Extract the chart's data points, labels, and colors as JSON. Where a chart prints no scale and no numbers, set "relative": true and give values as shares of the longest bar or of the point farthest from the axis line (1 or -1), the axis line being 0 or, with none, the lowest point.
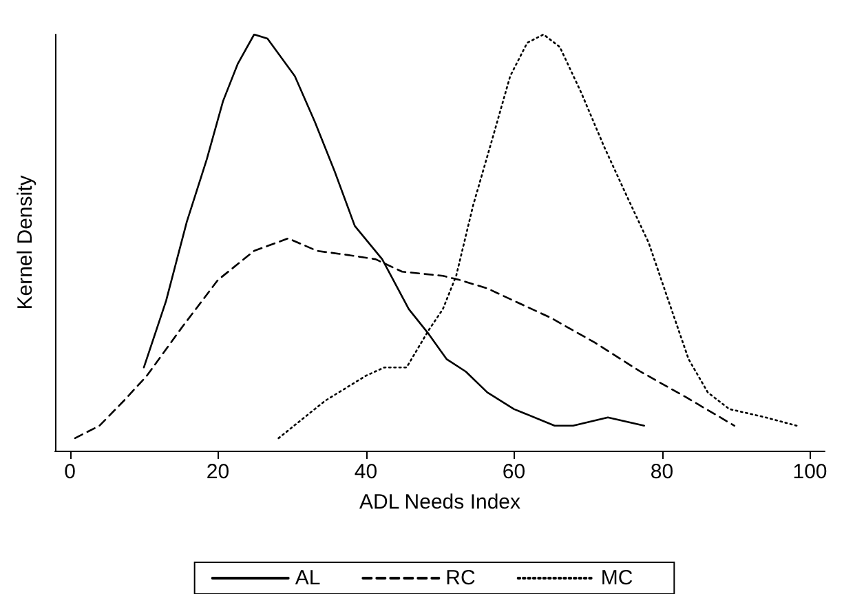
{
  "chart_data": {
    "type": "line",
    "xlabel": "ADL Needs Index",
    "ylabel": "Kernel Density",
    "relative": true,
    "xlim": [
      -2,
      102
    ],
    "xticks": [
      0,
      20,
      40,
      60,
      80,
      100
    ],
    "grid": false,
    "legend": "bottom",
    "marker": "none",
    "series": [
      {
        "name": "AL",
        "color": "#000000",
        "line_style": "solid",
        "x": [
          10,
          13,
          15.8,
          18.5,
          20.7,
          22.7,
          24.9,
          26.7,
          30.4,
          33.1,
          35.8,
          38.5,
          42.2,
          45.8,
          48.5,
          50.9,
          53.5,
          56.4,
          60,
          65.5,
          68,
          72.7,
          77.6
        ],
        "values": [
          0.2,
          0.36,
          0.55,
          0.7,
          0.84,
          0.93,
          1,
          0.99,
          0.9,
          0.79,
          0.67,
          0.54,
          0.46,
          0.34,
          0.28,
          0.22,
          0.19,
          0.14,
          0.1,
          0.06,
          0.06,
          0.08,
          0.06
        ]
      },
      {
        "name": "RC",
        "color": "#000000",
        "line_style": "dashed",
        "x": [
          0.7,
          4,
          7.3,
          10.4,
          15.3,
          20,
          24.9,
          29.5,
          33.4,
          37.6,
          41.3,
          44.9,
          50.4,
          52.7,
          56.4,
          60,
          64.9,
          70.9,
          77.1,
          83.1,
          89.8
        ],
        "values": [
          0.03,
          0.06,
          0.12,
          0.18,
          0.3,
          0.41,
          0.48,
          0.51,
          0.48,
          0.47,
          0.46,
          0.43,
          0.42,
          0.41,
          0.39,
          0.36,
          0.32,
          0.26,
          0.19,
          0.13,
          0.06
        ]
      },
      {
        "name": "MC",
        "color": "#000000",
        "line_style": "dotted",
        "x": [
          28.2,
          34.5,
          40,
          42.5,
          45.5,
          48.5,
          50.4,
          52.2,
          54.5,
          57.1,
          59.5,
          61.8,
          64,
          66.2,
          69.1,
          72.2,
          75.3,
          78.2,
          80.7,
          83.6,
          86.2,
          89.1,
          94,
          98.2
        ],
        "values": [
          0.03,
          0.12,
          0.18,
          0.2,
          0.2,
          0.29,
          0.34,
          0.42,
          0.59,
          0.75,
          0.9,
          0.98,
          1,
          0.97,
          0.86,
          0.73,
          0.61,
          0.5,
          0.37,
          0.22,
          0.14,
          0.1,
          0.08,
          0.06
        ]
      }
    ]
  }
}
